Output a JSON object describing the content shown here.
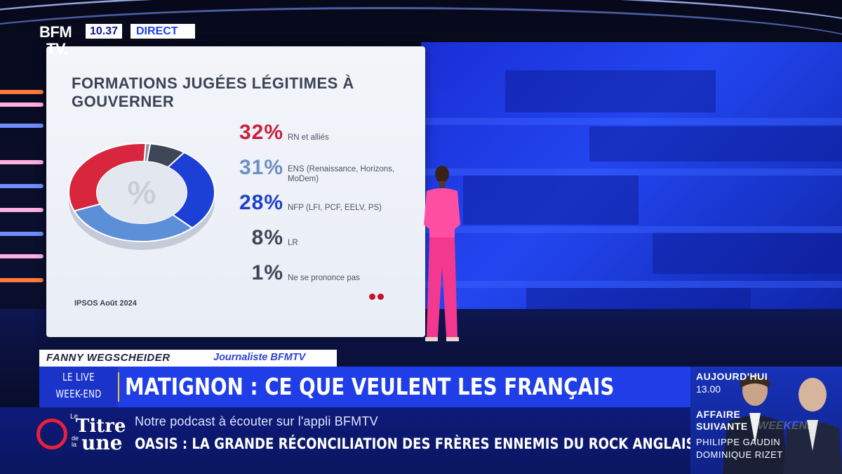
{
  "channel": {
    "logo_line1": "BFM",
    "logo_line2": "TV.",
    "clock": "10.37",
    "live_label": "DIRECT"
  },
  "chart_data": {
    "type": "pie",
    "title": "FORMATIONS JUGÉES LÉGITIMES À GOUVERNER",
    "center_label": "%",
    "source": "IPSOS Août 2024",
    "series": [
      {
        "name": "RN et alliés",
        "value": 32,
        "label": "32%",
        "color": "#d7263d"
      },
      {
        "name": "ENS (Renaissance, Horizons, MoDem)",
        "value": 31,
        "label": "31%",
        "color": "#5b8fd8"
      },
      {
        "name": "NFP (LFI, PCF, EELV, PS)",
        "value": 28,
        "label": "28%",
        "color": "#1c3fd6"
      },
      {
        "name": "LR",
        "value": 8,
        "label": "8%",
        "color": "#3f4658"
      },
      {
        "name": "Ne se prononce pas",
        "value": 1,
        "label": "1%",
        "color": "#8a93a6"
      }
    ],
    "legend_placement": "right"
  },
  "lower_third": {
    "name": "FANNY WEGSCHEIDER",
    "role": "Journaliste BFMTV",
    "show_line1": "LE LIVE",
    "show_line2": "WEEK-END",
    "headline": "MATIGNON : CE QUE VEULENT LES FRANÇAIS",
    "ticker_line1": "Notre podcast à écouter sur l'appli BFMTV",
    "ticker_line2": "OASIS : LA GRANDE RÉCONCILIATION DES FRÈRES ENNEMIS DU ROCK ANGLAIS ?",
    "podcast_logo": {
      "le": "Le",
      "titre": "Titre",
      "de_la": "de la",
      "une": "une"
    }
  },
  "next_show": {
    "today": "AUJOURD'HUI",
    "time": "13.00",
    "show_line1": "AFFAIRE",
    "show_line2": "SUIVANTE",
    "ghost_text": "WEEKEND",
    "host1": "PHILIPPE GAUDIN",
    "host2": "DOMINIQUE RIZET"
  },
  "colors": {
    "accent_blue": "#1f3ee8",
    "accent_red": "#d7263d",
    "separator_gold": "#f1c32c"
  }
}
